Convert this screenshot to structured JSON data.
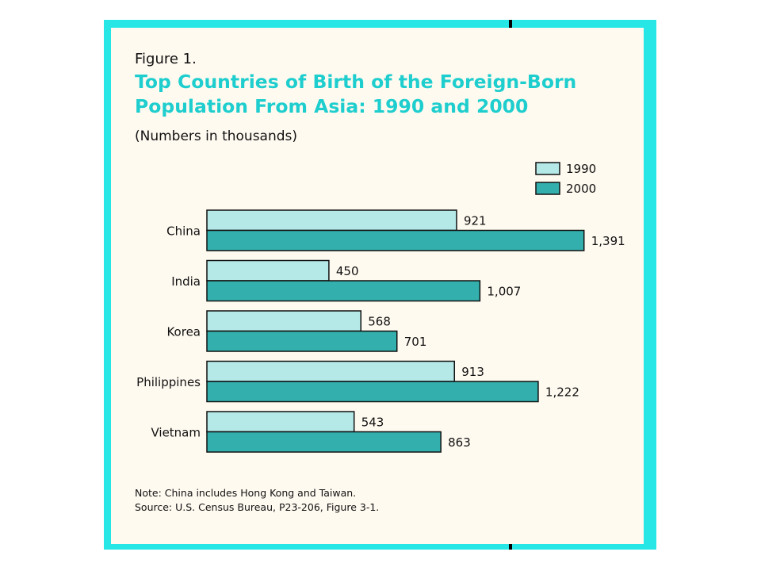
{
  "figure_label": "Figure 1.",
  "colors": {
    "frame": "#26e6e6",
    "panel": "#fffaf0",
    "title": "#1ecece",
    "bar_1990": "#b4e9e8",
    "bar_2000": "#33b0ad",
    "bar_border": "#111111"
  },
  "chart_data": {
    "type": "bar",
    "orientation": "horizontal",
    "title": "Top Countries of Birth of the Foreign-Born Population From Asia: 1990 and 2000",
    "subtitle": "(Numbers in thousands)",
    "categories": [
      "China",
      "India",
      "Korea",
      "Philippines",
      "Vietnam"
    ],
    "series": [
      {
        "name": "1990",
        "values": [
          921,
          450,
          568,
          913,
          543
        ],
        "labels": [
          "921",
          "450",
          "568",
          "913",
          "543"
        ]
      },
      {
        "name": "2000",
        "values": [
          1391,
          1007,
          701,
          1222,
          863
        ],
        "labels": [
          "1,391",
          "1,007",
          "701",
          "1,222",
          "863"
        ]
      }
    ],
    "legend": "top-right",
    "grid": false
  },
  "note": "Note:  China includes Hong Kong and Taiwan.",
  "source": "Source:  U.S. Census Bureau, P23-206, Figure 3-1."
}
